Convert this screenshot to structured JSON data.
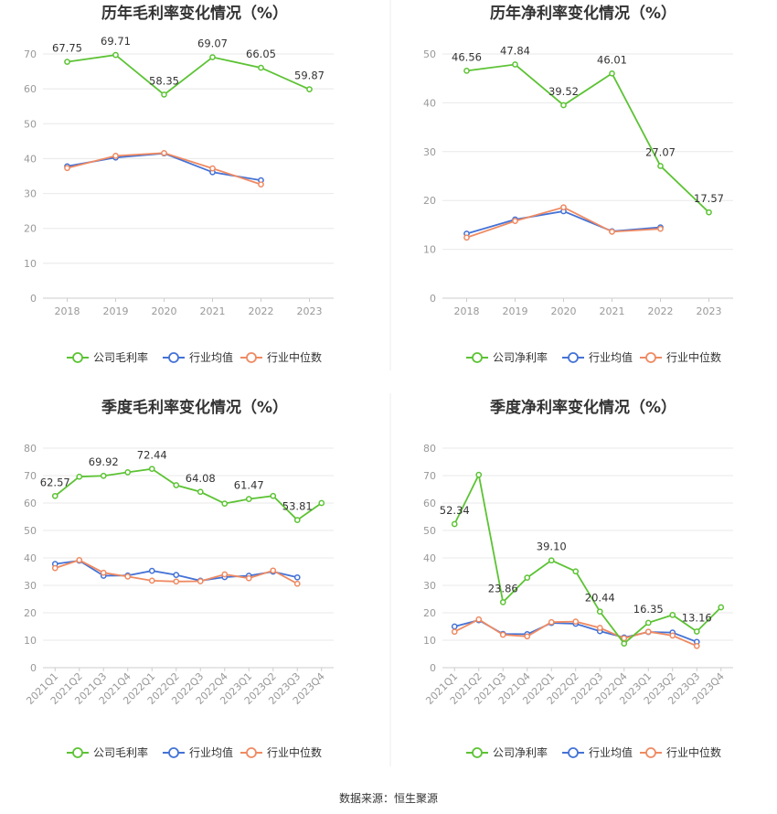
{
  "colors": {
    "company": "#5cc334",
    "avg": "#4472d6",
    "median": "#ef8a62",
    "grid": "#e8e8e8",
    "axis": "#cccccc"
  },
  "legend": {
    "gross": [
      "公司毛利率",
      "行业均值",
      "行业中位数"
    ],
    "net": [
      "公司净利率",
      "行业均值",
      "行业中位数"
    ]
  },
  "source": "数据来源：恒生聚源",
  "chart_data": [
    {
      "type": "line",
      "title": "历年毛利率变化情况（%）",
      "categories": [
        "2018",
        "2019",
        "2020",
        "2021",
        "2022",
        "2023"
      ],
      "ylim": [
        0,
        70
      ],
      "yticks": [
        0,
        10,
        20,
        30,
        40,
        50,
        60,
        70
      ],
      "series": [
        {
          "name": "公司毛利率",
          "values": [
            67.75,
            69.71,
            58.35,
            69.07,
            66.05,
            59.87
          ],
          "labels": [
            "67.75",
            "69.71",
            "58.35",
            "69.07",
            "66.05",
            "59.87"
          ]
        },
        {
          "name": "行业均值",
          "values": [
            37.8,
            40.3,
            41.5,
            36.1,
            33.8,
            null
          ]
        },
        {
          "name": "行业中位数",
          "values": [
            37.3,
            40.8,
            41.6,
            37.2,
            32.6,
            null
          ]
        }
      ]
    },
    {
      "type": "line",
      "title": "历年净利率变化情况（%）",
      "categories": [
        "2018",
        "2019",
        "2020",
        "2021",
        "2022",
        "2023"
      ],
      "ylim": [
        0,
        50
      ],
      "yticks": [
        0,
        10,
        20,
        30,
        40,
        50
      ],
      "series": [
        {
          "name": "公司净利率",
          "values": [
            46.56,
            47.84,
            39.52,
            46.01,
            27.07,
            17.57
          ],
          "labels": [
            "46.56",
            "47.84",
            "39.52",
            "46.01",
            "27.07",
            "17.57"
          ]
        },
        {
          "name": "行业均值",
          "values": [
            13.2,
            16.1,
            17.8,
            13.7,
            14.5,
            null
          ]
        },
        {
          "name": "行业中位数",
          "values": [
            12.4,
            15.8,
            18.6,
            13.6,
            14.2,
            null
          ]
        }
      ]
    },
    {
      "type": "line",
      "title": "季度毛利率变化情况（%）",
      "categories": [
        "2021Q1",
        "2021Q2",
        "2021Q3",
        "2021Q4",
        "2022Q1",
        "2022Q2",
        "2022Q3",
        "2022Q4",
        "2023Q1",
        "2023Q2",
        "2023Q3",
        "2023Q4"
      ],
      "ylim": [
        0,
        80
      ],
      "yticks": [
        0,
        10,
        20,
        30,
        40,
        50,
        60,
        70,
        80
      ],
      "series": [
        {
          "name": "公司毛利率",
          "values": [
            62.57,
            69.6,
            69.92,
            71.2,
            72.44,
            66.5,
            64.08,
            59.8,
            61.47,
            62.6,
            53.81,
            60.0
          ],
          "labels": [
            "62.57",
            null,
            "69.92",
            null,
            "72.44",
            null,
            "64.08",
            null,
            "61.47",
            null,
            "53.81",
            null
          ]
        },
        {
          "name": "行业均值",
          "values": [
            37.8,
            39.0,
            33.5,
            33.6,
            35.3,
            33.8,
            31.7,
            33.0,
            33.5,
            35.0,
            32.9,
            null
          ]
        },
        {
          "name": "行业中位数",
          "values": [
            36.3,
            39.2,
            34.6,
            33.2,
            31.7,
            31.4,
            31.5,
            34.0,
            32.6,
            35.4,
            30.6,
            null
          ]
        }
      ]
    },
    {
      "type": "line",
      "title": "季度净利率变化情况（%）",
      "categories": [
        "2021Q1",
        "2021Q2",
        "2021Q3",
        "2021Q4",
        "2022Q1",
        "2022Q2",
        "2022Q3",
        "2022Q4",
        "2023Q1",
        "2023Q2",
        "2023Q3",
        "2023Q4"
      ],
      "ylim": [
        0,
        80
      ],
      "yticks": [
        0,
        10,
        20,
        30,
        40,
        50,
        60,
        70,
        80
      ],
      "series": [
        {
          "name": "公司净利率",
          "values": [
            52.34,
            70.3,
            23.86,
            32.8,
            39.1,
            35.1,
            20.44,
            8.8,
            16.35,
            19.2,
            13.16,
            22.0
          ],
          "labels": [
            "52.34",
            null,
            "23.86",
            null,
            "39.10",
            null,
            "20.44",
            null,
            "16.35",
            null,
            "13.16",
            null
          ]
        },
        {
          "name": "行业均值",
          "values": [
            15.0,
            17.3,
            12.3,
            12.2,
            16.3,
            16.0,
            13.3,
            11.0,
            13.0,
            12.8,
            9.4,
            null
          ]
        },
        {
          "name": "行业中位数",
          "values": [
            13.1,
            17.6,
            12.0,
            11.4,
            16.6,
            16.8,
            14.5,
            10.7,
            13.1,
            11.7,
            7.9,
            null
          ]
        }
      ]
    }
  ]
}
